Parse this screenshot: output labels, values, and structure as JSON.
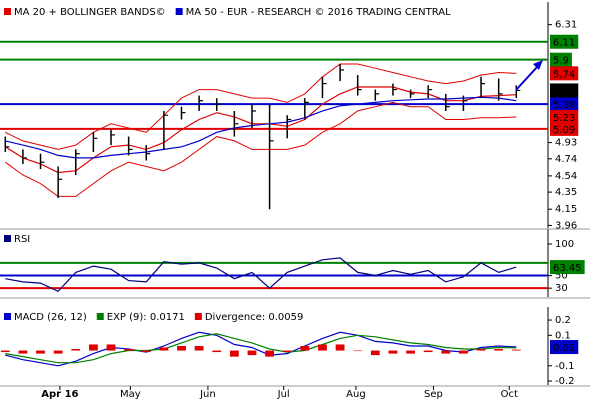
{
  "chart_data": [
    {
      "type": "hlc",
      "series": [
        {
          "name": "MA 20 + BOLLINGER BANDS©",
          "color": "#e00000",
          "values": [
            4.88,
            4.75,
            4.68,
            4.58,
            4.6,
            4.75,
            4.88,
            4.9,
            4.85,
            4.93,
            5.08,
            5.2,
            5.28,
            5.23,
            5.15,
            5.15,
            5.12,
            5.2,
            5.38,
            5.5,
            5.58,
            5.58,
            5.58,
            5.52,
            5.5,
            5.42,
            5.42,
            5.47,
            5.48,
            5.49
          ],
          "upper": [
            5.05,
            4.95,
            4.9,
            4.85,
            4.9,
            5.05,
            5.15,
            5.1,
            5.05,
            5.25,
            5.45,
            5.55,
            5.55,
            5.5,
            5.45,
            5.45,
            5.4,
            5.5,
            5.7,
            5.85,
            5.85,
            5.8,
            5.75,
            5.7,
            5.65,
            5.62,
            5.65,
            5.72,
            5.75,
            5.74
          ],
          "lower": [
            4.7,
            4.55,
            4.45,
            4.3,
            4.3,
            4.45,
            4.6,
            4.7,
            4.65,
            4.6,
            4.7,
            4.85,
            5.0,
            4.95,
            4.85,
            4.85,
            4.85,
            4.9,
            5.05,
            5.15,
            5.3,
            5.35,
            5.4,
            5.35,
            5.35,
            5.2,
            5.2,
            5.22,
            5.22,
            5.23
          ]
        },
        {
          "name": "MA 50 - EUR - RESEARCH © 2016 TRADING CENTRAL",
          "color": "#0000cc",
          "values": [
            4.95,
            4.9,
            4.85,
            4.78,
            4.75,
            4.75,
            4.78,
            4.8,
            4.82,
            4.85,
            4.88,
            4.95,
            5.05,
            5.1,
            5.13,
            5.15,
            5.17,
            5.22,
            5.3,
            5.36,
            5.38,
            5.4,
            5.42,
            5.43,
            5.44,
            5.44,
            5.45,
            5.46,
            5.45,
            5.42
          ]
        }
      ],
      "x": [
        0,
        1,
        2,
        3,
        4,
        5,
        6,
        7,
        8,
        9,
        10,
        11,
        12,
        13,
        14,
        15,
        16,
        17,
        18,
        19,
        20,
        21,
        22,
        23,
        24,
        25,
        26,
        27,
        28,
        29
      ],
      "high": [
        5.0,
        4.85,
        4.8,
        4.65,
        4.85,
        5.05,
        5.08,
        5.0,
        4.9,
        5.3,
        5.35,
        5.48,
        5.45,
        5.3,
        5.38,
        5.38,
        5.25,
        5.45,
        5.7,
        5.85,
        5.72,
        5.55,
        5.62,
        5.55,
        5.6,
        5.5,
        5.48,
        5.7,
        5.68,
        5.6
      ],
      "low": [
        4.82,
        4.68,
        4.62,
        4.28,
        4.55,
        4.82,
        4.9,
        4.78,
        4.72,
        4.85,
        5.2,
        5.3,
        5.3,
        5.0,
        5.1,
        4.15,
        4.98,
        5.2,
        5.45,
        5.65,
        5.48,
        5.42,
        5.48,
        5.45,
        5.45,
        5.3,
        5.3,
        5.45,
        5.42,
        5.45
      ],
      "close": [
        4.88,
        4.75,
        4.7,
        4.5,
        4.8,
        4.98,
        5.02,
        4.85,
        4.8,
        5.25,
        5.28,
        5.42,
        5.38,
        5.15,
        5.3,
        4.95,
        5.2,
        5.4,
        5.62,
        5.78,
        5.55,
        5.5,
        5.55,
        5.5,
        5.55,
        5.35,
        5.42,
        5.62,
        5.5,
        5.54
      ],
      "price_color": "#000000",
      "levels": [
        {
          "value": 6.11,
          "color": "#008000"
        },
        {
          "value": 5.9,
          "color": "#008000"
        },
        {
          "value": 5.38,
          "color": "#0000cc"
        },
        {
          "value": 5.09,
          "color": "#e00000"
        }
      ],
      "xlim": [
        -0.3,
        30.8
      ],
      "ylim": [
        3.93,
        6.54
      ],
      "yticks": [
        6.31,
        4.93,
        4.74,
        4.54,
        4.35,
        4.15,
        3.96
      ]
    },
    {
      "type": "line",
      "series": [
        {
          "name": "RSI",
          "color": "#000080",
          "values": [
            45,
            40,
            38,
            25,
            55,
            65,
            60,
            42,
            40,
            72,
            68,
            70,
            62,
            45,
            55,
            30,
            55,
            65,
            75,
            78,
            55,
            50,
            58,
            52,
            58,
            40,
            48,
            70,
            55,
            63.45
          ]
        }
      ],
      "x": [
        0,
        1,
        2,
        3,
        4,
        5,
        6,
        7,
        8,
        9,
        10,
        11,
        12,
        13,
        14,
        15,
        16,
        17,
        18,
        19,
        20,
        21,
        22,
        23,
        24,
        25,
        26,
        27,
        28,
        29
      ],
      "levels": [
        {
          "value": 70,
          "color": "#008000"
        },
        {
          "value": 50,
          "color": "#0000cc"
        },
        {
          "value": 30,
          "color": "#e00000"
        }
      ],
      "box_color": "#008000",
      "xlim": [
        -0.3,
        30.8
      ],
      "ylim": [
        16,
        119
      ],
      "yticks": [
        100,
        50,
        30
      ]
    },
    {
      "type": "macd",
      "series": [
        {
          "name": "MACD (26, 12)",
          "color": "#0000cc",
          "values": [
            -0.03,
            -0.06,
            -0.08,
            -0.1,
            -0.07,
            -0.02,
            0.02,
            0.01,
            -0.01,
            0.03,
            0.08,
            0.12,
            0.1,
            0.04,
            0.02,
            -0.03,
            -0.02,
            0.03,
            0.08,
            0.12,
            0.1,
            0.06,
            0.05,
            0.03,
            0.03,
            0.0,
            -0.01,
            0.02,
            0.03,
            0.023
          ]
        },
        {
          "name": "EXP (9): 0.0171",
          "color": "#008000",
          "values": [
            -0.02,
            -0.04,
            -0.06,
            -0.08,
            -0.08,
            -0.06,
            -0.02,
            0.0,
            0.0,
            0.01,
            0.05,
            0.09,
            0.11,
            0.08,
            0.05,
            0.01,
            -0.01,
            0.0,
            0.04,
            0.08,
            0.1,
            0.09,
            0.07,
            0.05,
            0.04,
            0.02,
            0.01,
            0.01,
            0.02,
            0.0171
          ]
        },
        {
          "name": "Divergence: 0.0059",
          "color": "#e00000",
          "kind": "bar",
          "values": [
            -0.01,
            -0.02,
            -0.02,
            -0.02,
            0.01,
            0.04,
            0.04,
            0.01,
            -0.01,
            0.02,
            0.03,
            0.03,
            -0.01,
            -0.04,
            -0.03,
            -0.04,
            -0.01,
            0.03,
            0.04,
            0.04,
            0.0,
            -0.03,
            -0.02,
            -0.02,
            -0.01,
            -0.02,
            -0.02,
            0.01,
            0.01,
            0.0059
          ]
        }
      ],
      "current": {
        "value": 0.023,
        "label": "0.02"
      },
      "x": [
        0,
        1,
        2,
        3,
        4,
        5,
        6,
        7,
        8,
        9,
        10,
        11,
        12,
        13,
        14,
        15,
        16,
        17,
        18,
        19,
        20,
        21,
        22,
        23,
        24,
        25,
        26,
        27,
        28,
        29
      ],
      "xlim": [
        -0.3,
        30.8
      ],
      "ylim": [
        -0.226,
        0.266
      ],
      "yticks": [
        0.2,
        0.1,
        -0.1,
        -0.2
      ],
      "xticks": [
        {
          "value": 3.1,
          "label": "Apr 16"
        },
        {
          "value": 7.1,
          "label": "May"
        },
        {
          "value": 11.5,
          "label": "Jun"
        },
        {
          "value": 15.8,
          "label": "Jul"
        },
        {
          "value": 19.9,
          "label": "Aug"
        },
        {
          "value": 24.3,
          "label": "Sep"
        },
        {
          "value": 28.6,
          "label": "Oct"
        }
      ]
    }
  ]
}
